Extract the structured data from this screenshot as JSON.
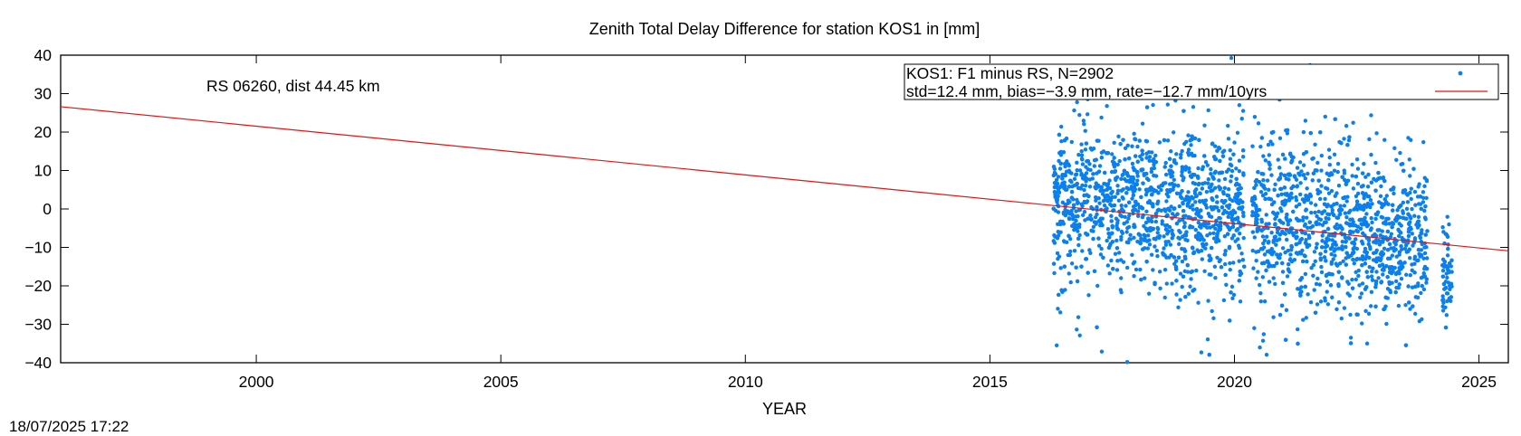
{
  "chart_data": {
    "type": "scatter",
    "title": "Zenith Total Delay Difference for station KOS1 in [mm]",
    "xlabel": "YEAR",
    "ylabel": "",
    "xlim": [
      1996,
      2025.6
    ],
    "ylim": [
      -40,
      40
    ],
    "x_ticks": [
      2000,
      2005,
      2010,
      2015,
      2020,
      2025
    ],
    "y_ticks": [
      -40,
      -30,
      -20,
      -10,
      0,
      10,
      20,
      30,
      40
    ],
    "annotation": "RS 06260, dist 44.45 km",
    "legend_position": "top-right",
    "legend": [
      {
        "label": "KOS1: F1 minus RS, N=2902",
        "marker": "point"
      },
      {
        "label": "std=12.4 mm, bias=−3.9 mm, rate=−12.7 mm/10yrs",
        "marker": "line"
      }
    ],
    "series": [
      {
        "name": "KOS1: F1 minus RS, N=2902",
        "kind": "points",
        "color": "#0a80ee",
        "count": 2902,
        "x_range": [
          2016.3,
          2024.45
        ],
        "gap": [
          2020.2,
          2020.35
        ],
        "std": 12.4,
        "bias": -3.9,
        "sample_points": [
          [
            2016.4,
            5
          ],
          [
            2016.6,
            -12
          ],
          [
            2016.9,
            8
          ],
          [
            2017.2,
            -20
          ],
          [
            2017.5,
            3
          ],
          [
            2017.8,
            -6
          ],
          [
            2018.1,
            10
          ],
          [
            2018.4,
            -2
          ],
          [
            2018.7,
            15
          ],
          [
            2019.0,
            -8
          ],
          [
            2019.3,
            4
          ],
          [
            2019.6,
            -15
          ],
          [
            2019.9,
            1
          ],
          [
            2020.1,
            27
          ],
          [
            2020.5,
            -5
          ],
          [
            2020.8,
            -18
          ],
          [
            2021.1,
            9
          ],
          [
            2021.4,
            -3
          ],
          [
            2021.7,
            12
          ],
          [
            2022.0,
            -10
          ],
          [
            2022.3,
            2
          ],
          [
            2022.6,
            -22
          ],
          [
            2022.9,
            -7
          ],
          [
            2023.2,
            5
          ],
          [
            2023.5,
            -25
          ],
          [
            2023.8,
            -12
          ],
          [
            2024.3,
            -15
          ],
          [
            2024.4,
            -20
          ]
        ]
      },
      {
        "name": "std=12.4 mm, bias=−3.9 mm, rate=−12.7 mm/10yrs",
        "kind": "line",
        "color": "#e8120f",
        "x": [
          1996,
          2025.6
        ],
        "y": [
          26.6,
          -10.9
        ]
      }
    ]
  },
  "timestamp": "18/07/2025 17:22"
}
